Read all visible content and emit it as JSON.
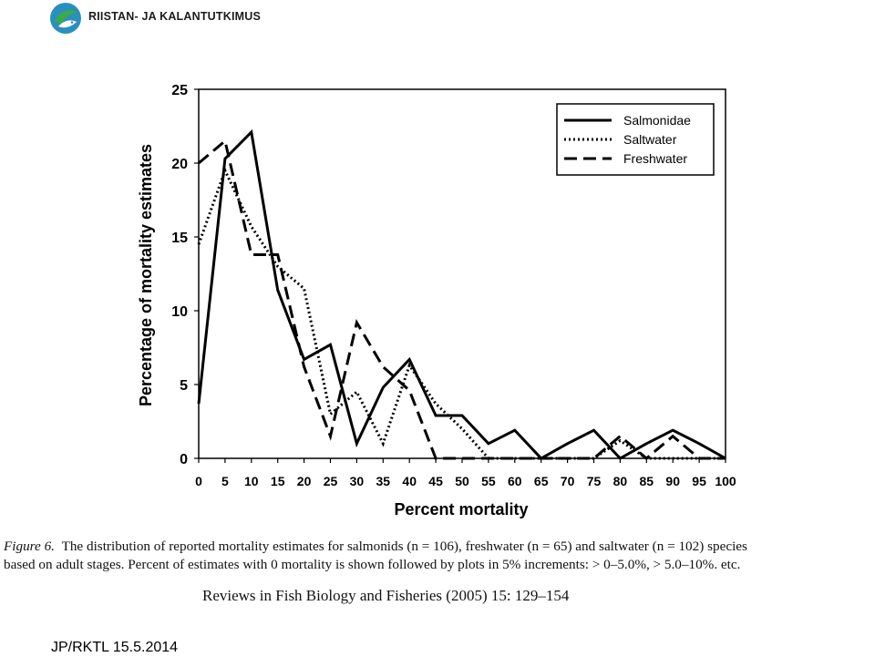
{
  "header": {
    "org_name": "RIISTAN- JA KALANTUTKIMUS",
    "logo_icon": "fish-leaf-logo-icon",
    "brand_color": "#2a8fbf",
    "brand_color_2": "#3aaa4a"
  },
  "chart_data": {
    "type": "line",
    "xlabel": "Percent mortality",
    "ylabel": "Percentage of mortality estimates",
    "xlim": [
      0,
      100
    ],
    "ylim": [
      0,
      25
    ],
    "x_ticks": [
      "0",
      "5",
      "10",
      "15",
      "20",
      "25",
      "30",
      "35",
      "40",
      "45",
      "50",
      "55",
      "60",
      "65",
      "70",
      "75",
      "80",
      "85",
      "90",
      "95",
      "100"
    ],
    "y_ticks": [
      "0",
      "5",
      "10",
      "15",
      "20",
      "25"
    ],
    "grid": false,
    "legend_position": "top-right",
    "x": [
      0,
      5,
      10,
      15,
      20,
      25,
      30,
      35,
      40,
      45,
      50,
      55,
      60,
      65,
      70,
      75,
      80,
      85,
      90,
      95,
      100
    ],
    "series": [
      {
        "name": "Salmonidae",
        "style": "solid",
        "values": [
          3.7,
          20.3,
          22.1,
          11.4,
          6.7,
          7.7,
          1.0,
          4.8,
          6.7,
          2.9,
          2.9,
          1.0,
          1.9,
          0,
          1.0,
          1.9,
          0,
          1.0,
          1.9,
          1.0,
          0
        ]
      },
      {
        "name": "Saltwater",
        "style": "dotted",
        "values": [
          14.5,
          19.5,
          15.7,
          13.0,
          11.5,
          3.0,
          4.5,
          1.0,
          6.3,
          3.7,
          2.0,
          0,
          0,
          0,
          0,
          0,
          1.2,
          0,
          0,
          0,
          0
        ]
      },
      {
        "name": "Freshwater",
        "style": "dashed",
        "values": [
          20.0,
          21.5,
          13.8,
          13.8,
          6.2,
          1.5,
          9.2,
          6.2,
          4.6,
          0,
          0,
          0,
          0,
          0,
          0,
          0,
          1.5,
          0,
          1.5,
          0,
          0
        ]
      }
    ]
  },
  "caption": {
    "figure_label": "Figure 6.",
    "line1": "The distribution of reported mortality estimates for salmonids (n = 106), freshwater (n = 65) and saltwater (n = 102) species",
    "line2": "based on adult stages. Percent of estimates with 0 mortality is shown followed by plots in 5% increments:  > 0–5.0%,  > 5.0–10%. etc."
  },
  "reference": "Reviews in Fish Biology and Fisheries  (2005) 15: 129–154",
  "footer": "JP/RKTL 15.5.2014"
}
